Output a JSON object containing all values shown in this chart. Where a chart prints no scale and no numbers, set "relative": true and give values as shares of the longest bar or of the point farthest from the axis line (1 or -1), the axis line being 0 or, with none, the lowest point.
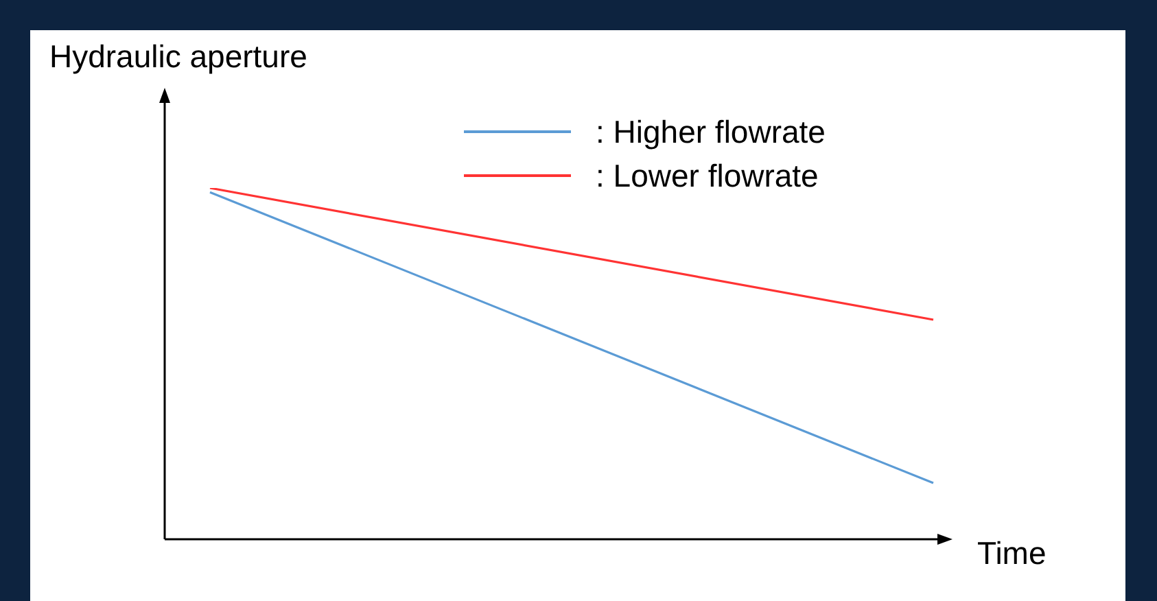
{
  "chart_data": {
    "type": "line",
    "relative": true,
    "xlabel": "Time",
    "ylabel": "Hydraulic aperture",
    "categories": [
      null,
      null
    ],
    "legend": "top right",
    "marker": "none",
    "series": [
      {
        "name": ": Higher flowrate",
        "color": "#5b9bd5",
        "values": [
          0.988,
          0.16
        ]
      },
      {
        "name": ": Lower flowrate",
        "color": "#ff3333",
        "values": [
          1,
          0.625
        ]
      }
    ]
  }
}
